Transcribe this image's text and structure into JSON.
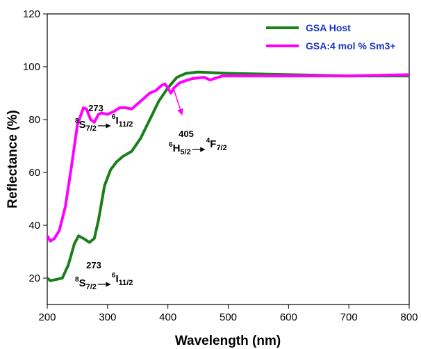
{
  "chart_data": {
    "type": "line",
    "xlabel": "Wavelength (nm)",
    "ylabel": "Reflectance (%)",
    "xlim": [
      200,
      800
    ],
    "ylim": [
      10,
      120
    ],
    "xticks": [
      200,
      300,
      400,
      500,
      600,
      700,
      800
    ],
    "yticks": [
      20,
      40,
      60,
      80,
      100,
      120
    ],
    "legend": "upper right",
    "series": [
      {
        "name": "GSA Host",
        "color": "#1a7f1a",
        "x": [
          200,
          205,
          215,
          225,
          235,
          245,
          252,
          260,
          270,
          278,
          285,
          295,
          305,
          315,
          325,
          340,
          355,
          370,
          385,
          400,
          415,
          430,
          450,
          500,
          600,
          700,
          800
        ],
        "values": [
          20,
          19,
          19.5,
          20,
          25,
          33,
          36,
          35,
          33.5,
          35,
          42,
          55,
          61,
          64,
          66,
          68,
          73,
          80,
          87,
          92,
          96,
          97.5,
          98,
          97.5,
          97,
          96.5,
          96.5
        ]
      },
      {
        "name": "GSA:4 mol % Sm3+",
        "color": "#ff00ff",
        "x": [
          200,
          205,
          212,
          220,
          230,
          240,
          250,
          260,
          265,
          272,
          278,
          285,
          290,
          300,
          310,
          320,
          330,
          340,
          350,
          360,
          370,
          380,
          390,
          395,
          400,
          405,
          410,
          420,
          440,
          460,
          470,
          490,
          550,
          700,
          800
        ],
        "values": [
          36,
          34,
          35,
          38,
          47,
          62,
          78,
          84.5,
          84,
          80,
          79,
          82,
          82.5,
          82,
          83,
          84.5,
          84.5,
          84,
          86,
          88,
          90,
          91,
          93,
          93.5,
          92,
          90,
          92,
          94,
          95.5,
          96,
          95,
          96.5,
          96.5,
          96.5,
          97
        ]
      }
    ],
    "annotations": [
      {
        "peak": "273",
        "sup1": "8",
        "term1": "S",
        "sub1": "7/2",
        "sup2": "6",
        "term2": "I",
        "sub2": "11/2"
      },
      {
        "peak": "273",
        "sup1": "8",
        "term1": "S",
        "sub1": "7/2",
        "sup2": "6",
        "term2": "I",
        "sub2": "11/2"
      },
      {
        "peak": "405",
        "sup1": "6",
        "term1": "H",
        "sub1": "5/2",
        "sup2": "4",
        "term2": "F",
        "sub2": "7/2"
      }
    ]
  }
}
